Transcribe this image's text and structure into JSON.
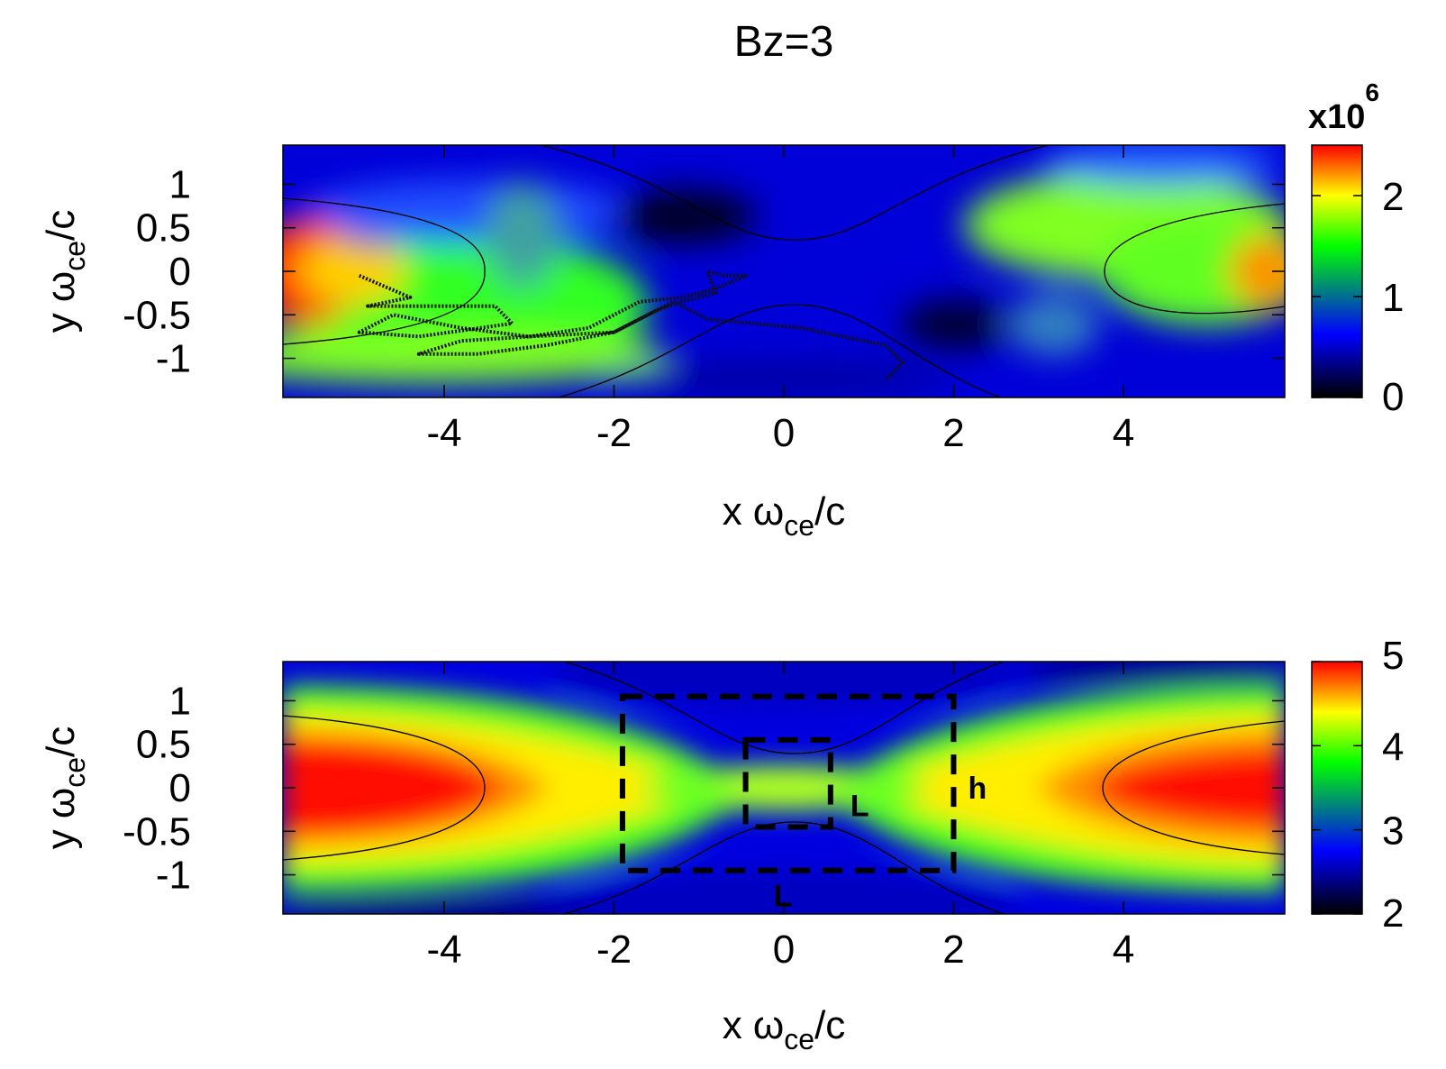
{
  "chart_data": [
    {
      "type": "heatmap",
      "title": "Bz=3",
      "xlabel": {
        "main": "x ω",
        "sub": "ce",
        "tail": "/c"
      },
      "ylabel": {
        "main": "y ω",
        "sub": "ce",
        "tail": "/c"
      },
      "xlim": [
        -5.9,
        5.9
      ],
      "ylim": [
        -1.45,
        1.45
      ],
      "xticks": [
        -4,
        -2,
        0,
        2,
        4
      ],
      "xticklabels": [
        "-4",
        "-2",
        "0",
        "2",
        "4"
      ],
      "yticks": [
        1,
        0.5,
        0,
        -0.5,
        -1
      ],
      "yticklabels": [
        "1",
        "0.5",
        "0",
        "-0.5",
        "-1"
      ],
      "colorbar": {
        "range": [
          0,
          2.5
        ],
        "ticks": [
          0,
          1,
          2
        ],
        "ticklabels": [
          "0",
          "1",
          "2"
        ],
        "multiplier_base": "x10",
        "multiplier_exp": "6"
      },
      "colormap": [
        "#000000",
        "#0000ff",
        "#00ff00",
        "#ffff00",
        "#ff0000"
      ],
      "trajectory": {
        "color": "#000000",
        "points": [
          [
            -5.0,
            -0.05
          ],
          [
            -4.4,
            -0.3
          ],
          [
            -4.9,
            -0.4
          ],
          [
            -3.4,
            -0.4
          ],
          [
            -3.2,
            -0.6
          ],
          [
            -4.3,
            -0.75
          ],
          [
            -5.0,
            -0.7
          ],
          [
            -4.6,
            -0.5
          ],
          [
            -3.8,
            -0.65
          ],
          [
            -3.0,
            -0.75
          ],
          [
            -2.3,
            -0.65
          ],
          [
            -1.7,
            -0.35
          ],
          [
            -1.2,
            -0.3
          ],
          [
            -0.8,
            -0.2
          ],
          [
            -0.45,
            -0.05
          ],
          [
            -0.7,
            -0.05
          ],
          [
            -0.9,
            0.0
          ],
          [
            -0.8,
            -0.25
          ],
          [
            -1.2,
            -0.35
          ],
          [
            -1.5,
            -0.45
          ],
          [
            -2.0,
            -0.7
          ],
          [
            -2.8,
            -0.85
          ],
          [
            -3.6,
            -0.95
          ],
          [
            -4.3,
            -0.95
          ],
          [
            -3.8,
            -0.8
          ],
          [
            -3.0,
            -0.75
          ],
          [
            -2.0,
            -0.7
          ],
          [
            -1.3,
            -0.35
          ],
          [
            -0.9,
            -0.55
          ],
          [
            0.2,
            -0.65
          ],
          [
            1.2,
            -0.85
          ],
          [
            1.4,
            -1.05
          ],
          [
            1.2,
            -1.25
          ]
        ]
      },
      "separatrix": {
        "x_o": 3.6,
        "y_half_width": 0.4,
        "color": "#000000"
      }
    },
    {
      "type": "heatmap",
      "title": "",
      "xlabel": {
        "main": "x ω",
        "sub": "ce",
        "tail": "/c"
      },
      "ylabel": {
        "main": "y ω",
        "sub": "ce",
        "tail": "/c"
      },
      "xlim": [
        -5.9,
        5.9
      ],
      "ylim": [
        -1.45,
        1.45
      ],
      "xticks": [
        -4,
        -2,
        0,
        2,
        4
      ],
      "xticklabels": [
        "-4",
        "-2",
        "0",
        "2",
        "4"
      ],
      "yticks": [
        1,
        0.5,
        0,
        -0.5,
        -1
      ],
      "yticklabels": [
        "1",
        "0.5",
        "0",
        "-0.5",
        "-1"
      ],
      "colorbar": {
        "range": [
          2,
          5
        ],
        "ticks": [
          2,
          3,
          4,
          5
        ],
        "ticklabels": [
          "2",
          "3",
          "4",
          "5"
        ]
      },
      "colormap": [
        "#000000",
        "#0000ff",
        "#00ff00",
        "#ffff00",
        "#ff0000"
      ],
      "boxes": [
        {
          "x0": -1.9,
          "x1": 2.0,
          "y0": -0.95,
          "y1": 1.05,
          "side_label": "h",
          "bottom_label": "L"
        },
        {
          "x0": -0.45,
          "x1": 0.55,
          "y0": -0.45,
          "y1": 0.55,
          "side_label": "L"
        }
      ],
      "separatrix": {
        "x_o": 3.6,
        "y_half_width": 0.4,
        "color": "#000000"
      }
    }
  ]
}
